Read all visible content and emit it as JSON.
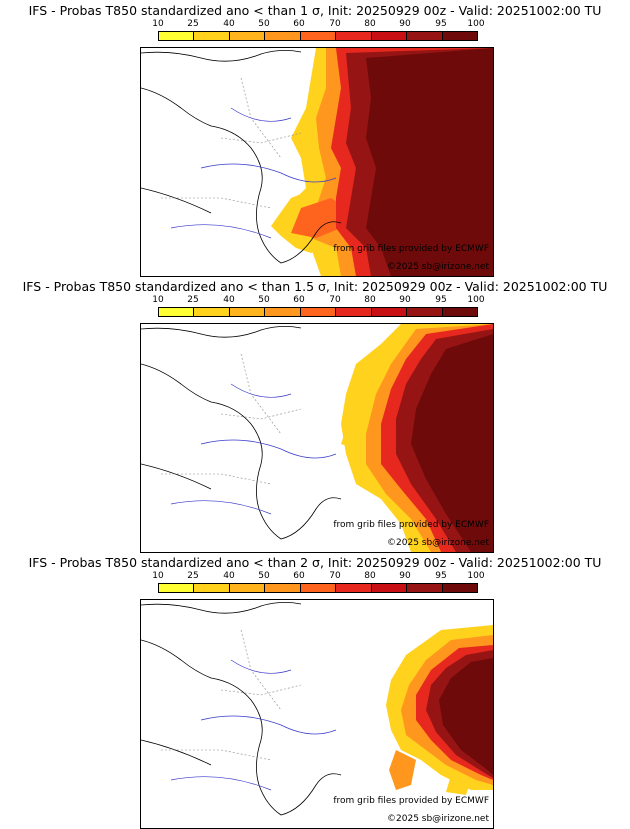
{
  "scale": {
    "labels": [
      "10",
      "25",
      "40",
      "50",
      "60",
      "70",
      "80",
      "90",
      "95",
      "100"
    ],
    "colors": [
      "#ffff33",
      "#ffd21e",
      "#ffb41e",
      "#ff961e",
      "#ff641e",
      "#e6281e",
      "#c80f14",
      "#961414",
      "#6e0a0a"
    ]
  },
  "credits": {
    "source": "from grib files provided by ECMWF",
    "copyright": "©2025 sb@irizone.net"
  },
  "panels": [
    {
      "title": "IFS - Probas T850  standardized ano < than 1 σ, Init: 20250929 00z - Valid: 20251002:00 TU"
    },
    {
      "title": "IFS - Probas T850  standardized ano < than 1.5 σ, Init: 20250929 00z - Valid: 20251002:00 TU"
    },
    {
      "title": "IFS - Probas T850  standardized ano < than 2 σ, Init: 20250929 00z - Valid: 20251002:00 TU"
    }
  ]
}
